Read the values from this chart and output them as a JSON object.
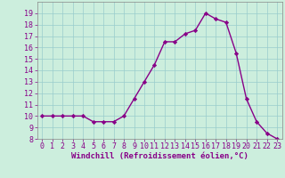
{
  "x": [
    0,
    1,
    2,
    3,
    4,
    5,
    6,
    7,
    8,
    9,
    10,
    11,
    12,
    13,
    14,
    15,
    16,
    17,
    18,
    19,
    20,
    21,
    22,
    23
  ],
  "y": [
    10,
    10,
    10,
    10,
    10,
    9.5,
    9.5,
    9.5,
    10,
    11.5,
    13,
    14.5,
    16.5,
    16.5,
    17.2,
    17.5,
    19,
    18.5,
    18.2,
    15.5,
    11.5,
    9.5,
    8.5,
    8
  ],
  "line_color": "#880088",
  "marker": "D",
  "marker_size": 2.2,
  "xlabel": "Windchill (Refroidissement éolien,°C)",
  "ylim": [
    8,
    20
  ],
  "xlim": [
    -0.5,
    23.5
  ],
  "yticks": [
    8,
    9,
    10,
    11,
    12,
    13,
    14,
    15,
    16,
    17,
    18,
    19
  ],
  "xticks": [
    0,
    1,
    2,
    3,
    4,
    5,
    6,
    7,
    8,
    9,
    10,
    11,
    12,
    13,
    14,
    15,
    16,
    17,
    18,
    19,
    20,
    21,
    22,
    23
  ],
  "background_color": "#cceedd",
  "grid_color": "#99cccc",
  "xlabel_fontsize": 6.5,
  "tick_fontsize": 6.0,
  "linewidth": 1.0
}
